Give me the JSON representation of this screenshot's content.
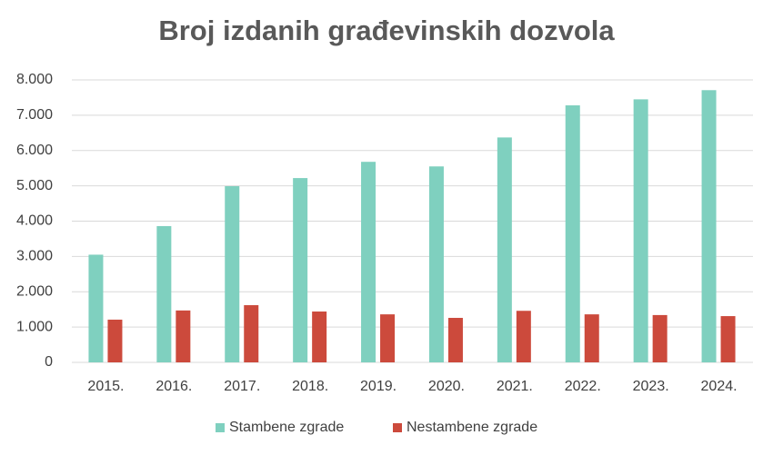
{
  "chart_data": {
    "type": "bar",
    "title": "Broj izdanih građevinskih dozvola",
    "categories": [
      "2015.",
      "2016.",
      "2017.",
      "2018.",
      "2019.",
      "2020.",
      "2021.",
      "2022.",
      "2023.",
      "2024."
    ],
    "series": [
      {
        "name": "Stambene zgrade",
        "color": "#7fd0bf",
        "values": [
          3050,
          3860,
          4990,
          5220,
          5680,
          5550,
          6370,
          7280,
          7450,
          7710
        ]
      },
      {
        "name": "Nestambene zgrade",
        "color": "#cc4a3c",
        "values": [
          1210,
          1470,
          1620,
          1440,
          1360,
          1260,
          1460,
          1360,
          1340,
          1310
        ]
      }
    ],
    "ylim": [
      0,
      8000
    ],
    "yticks": [
      0,
      {
        "value": 1000,
        "label": "1.000"
      },
      {
        "value": 2000,
        "label": "2.000"
      },
      {
        "value": 3000,
        "label": "3.000"
      },
      {
        "value": 4000,
        "label": "4.000"
      },
      {
        "value": 5000,
        "label": "5.000"
      },
      {
        "value": 6000,
        "label": "6.000"
      },
      {
        "value": 7000,
        "label": "7.000"
      },
      {
        "value": 8000,
        "label": "8.000"
      }
    ],
    "grid": true,
    "legend": "bottom"
  }
}
